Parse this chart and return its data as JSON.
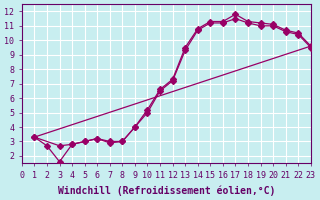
{
  "xlabel": "Windchill (Refroidissement éolien,°C)",
  "ylabel": "",
  "bg_color": "#c8eef0",
  "line_color": "#990066",
  "grid_color": "#ffffff",
  "xlim": [
    0,
    23
  ],
  "ylim": [
    1.5,
    12.5
  ],
  "xticks": [
    0,
    1,
    2,
    3,
    4,
    5,
    6,
    7,
    8,
    9,
    10,
    11,
    12,
    13,
    14,
    15,
    16,
    17,
    18,
    19,
    20,
    21,
    22,
    23
  ],
  "yticks": [
    2,
    3,
    4,
    5,
    6,
    7,
    8,
    9,
    10,
    11,
    12
  ],
  "line1_x": [
    1,
    2,
    3,
    4,
    5,
    6,
    7,
    8,
    9,
    10,
    11,
    12,
    13,
    14,
    15,
    16,
    17,
    18,
    19,
    20,
    21,
    22,
    23
  ],
  "line1_y": [
    3.3,
    2.7,
    1.6,
    2.8,
    3.0,
    3.2,
    3.0,
    3.0,
    4.0,
    5.2,
    6.6,
    7.3,
    9.5,
    10.8,
    11.3,
    11.3,
    11.8,
    11.3,
    11.2,
    11.1,
    10.7,
    10.5,
    9.6
  ],
  "line2_x": [
    1,
    3,
    4,
    5,
    6,
    7,
    8,
    9,
    10,
    11,
    12,
    13,
    14,
    15,
    16,
    17,
    18,
    19,
    20,
    21,
    22,
    23
  ],
  "line2_y": [
    3.3,
    2.7,
    2.8,
    3.0,
    3.2,
    2.9,
    3.0,
    4.0,
    5.0,
    6.5,
    7.2,
    9.3,
    10.7,
    11.2,
    11.2,
    11.5,
    11.2,
    11.0,
    11.0,
    10.6,
    10.4,
    9.5
  ],
  "line3_x": [
    1,
    23
  ],
  "line3_y": [
    3.3,
    9.6
  ],
  "figsize": [
    3.2,
    2.0
  ],
  "dpi": 100,
  "font_family": "monospace",
  "xlabel_fontsize": 7,
  "tick_fontsize": 6
}
